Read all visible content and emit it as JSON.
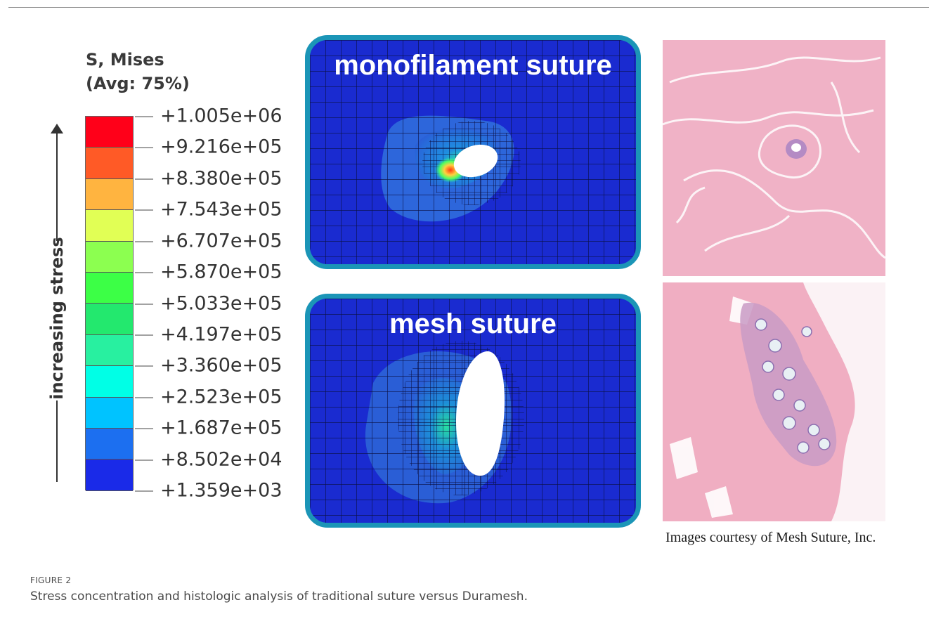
{
  "legend": {
    "title_line1": "S, Mises",
    "title_line2": "(Avg: 75%)",
    "axis_label": "increasing stress",
    "ticks": [
      "+1.005e+06",
      "+9.216e+05",
      "+8.380e+05",
      "+7.543e+05",
      "+6.707e+05",
      "+5.870e+05",
      "+5.033e+05",
      "+4.197e+05",
      "+3.360e+05",
      "+2.523e+05",
      "+1.687e+05",
      "+8.502e+04",
      "+1.359e+03"
    ],
    "band_colors": [
      "#ff0019",
      "#ff5a26",
      "#ffb440",
      "#e1ff55",
      "#8cff50",
      "#3cff46",
      "#23e86e",
      "#28f0a0",
      "#00ffe6",
      "#00c3ff",
      "#1c6ff0",
      "#1a2ae8"
    ]
  },
  "panels": {
    "top_title": "monofilament suture",
    "bottom_title": "mesh suture"
  },
  "histology": {
    "credit": "Images courtesy of Mesh Suture, Inc."
  },
  "figure": {
    "label": "FIGURE 2",
    "caption": "Stress concentration and histologic analysis of traditional suture versus Duramesh."
  },
  "colors": {
    "panel_border": "#1b95b7",
    "mesh_background": "#1a2bd0",
    "tissue_pink": "#f2b7c8"
  }
}
